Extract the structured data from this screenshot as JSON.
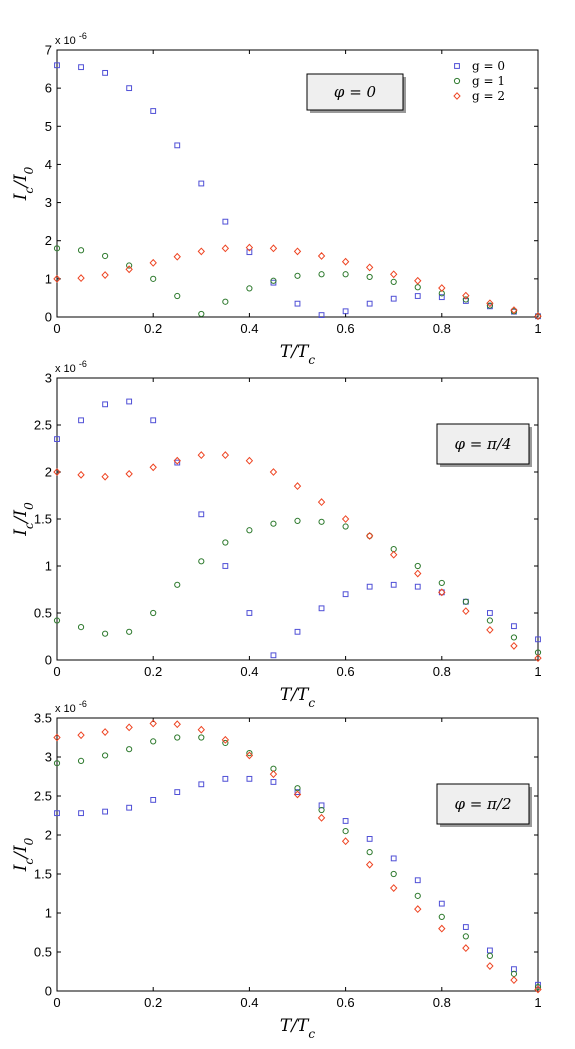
{
  "figure": {
    "xlabel": "T/T_c",
    "ylabel": "I_c/I_0",
    "exponent": "x 10",
    "exponent_power": "-6"
  },
  "colors": {
    "g0": "#4f4fd6",
    "g1": "#2e7a2e",
    "g2": "#ee4422"
  },
  "legend": {
    "placement": "top-right of top panel",
    "entries": [
      "g = 0",
      "g = 1",
      "g = 2"
    ]
  },
  "chart_data": [
    {
      "type": "scatter",
      "annotation": "φ = 0",
      "xlabel": "T/T_c",
      "ylabel": "I_c/I_0",
      "xlim": [
        0,
        1
      ],
      "ylim": [
        0,
        7
      ],
      "xticks": [
        "0",
        "0.2",
        "0.4",
        "0.6",
        "0.8",
        "1"
      ],
      "yticks": [
        "0",
        "1",
        "2",
        "3",
        "4",
        "5",
        "6",
        "7"
      ],
      "ymultiplier": "x 10^-6",
      "series": [
        {
          "name": "g = 0",
          "marker": "square",
          "points": [
            [
              0,
              6.6
            ],
            [
              0.05,
              6.55
            ],
            [
              0.1,
              6.4
            ],
            [
              0.15,
              6.0
            ],
            [
              0.2,
              5.4
            ],
            [
              0.25,
              4.5
            ],
            [
              0.3,
              3.5
            ],
            [
              0.35,
              2.5
            ],
            [
              0.4,
              1.7
            ],
            [
              0.45,
              0.9
            ],
            [
              0.5,
              0.35
            ],
            [
              0.55,
              0.05
            ],
            [
              0.6,
              0.15
            ],
            [
              0.65,
              0.35
            ],
            [
              0.7,
              0.48
            ],
            [
              0.75,
              0.55
            ],
            [
              0.8,
              0.52
            ],
            [
              0.85,
              0.42
            ],
            [
              0.9,
              0.28
            ],
            [
              0.95,
              0.14
            ],
            [
              1,
              0.02
            ]
          ]
        },
        {
          "name": "g = 1",
          "marker": "circle",
          "points": [
            [
              0,
              1.8
            ],
            [
              0.05,
              1.75
            ],
            [
              0.1,
              1.6
            ],
            [
              0.15,
              1.35
            ],
            [
              0.2,
              1.0
            ],
            [
              0.25,
              0.55
            ],
            [
              0.3,
              0.08
            ],
            [
              0.35,
              0.4
            ],
            [
              0.4,
              0.75
            ],
            [
              0.45,
              0.95
            ],
            [
              0.5,
              1.08
            ],
            [
              0.55,
              1.12
            ],
            [
              0.6,
              1.12
            ],
            [
              0.65,
              1.05
            ],
            [
              0.7,
              0.92
            ],
            [
              0.75,
              0.78
            ],
            [
              0.8,
              0.62
            ],
            [
              0.85,
              0.46
            ],
            [
              0.9,
              0.3
            ],
            [
              0.95,
              0.15
            ],
            [
              1,
              0.02
            ]
          ]
        },
        {
          "name": "g = 2",
          "marker": "diamond",
          "points": [
            [
              0,
              1.0
            ],
            [
              0.05,
              1.02
            ],
            [
              0.1,
              1.1
            ],
            [
              0.15,
              1.25
            ],
            [
              0.2,
              1.42
            ],
            [
              0.25,
              1.58
            ],
            [
              0.3,
              1.72
            ],
            [
              0.35,
              1.8
            ],
            [
              0.4,
              1.82
            ],
            [
              0.45,
              1.8
            ],
            [
              0.5,
              1.72
            ],
            [
              0.55,
              1.6
            ],
            [
              0.6,
              1.45
            ],
            [
              0.65,
              1.3
            ],
            [
              0.7,
              1.12
            ],
            [
              0.75,
              0.95
            ],
            [
              0.8,
              0.76
            ],
            [
              0.85,
              0.56
            ],
            [
              0.9,
              0.36
            ],
            [
              0.95,
              0.18
            ],
            [
              1,
              0.02
            ]
          ]
        }
      ]
    },
    {
      "type": "scatter",
      "annotation": "φ = π/4",
      "xlabel": "T/T_c",
      "ylabel": "I_c/I_0",
      "xlim": [
        0,
        1
      ],
      "ylim": [
        0,
        3
      ],
      "xticks": [
        "0",
        "0.2",
        "0.4",
        "0.6",
        "0.8",
        "1"
      ],
      "yticks": [
        "0",
        "0.5",
        "1",
        "1.5",
        "2",
        "2.5",
        "3"
      ],
      "ymultiplier": "x 10^-6",
      "series": [
        {
          "name": "g = 0",
          "marker": "square",
          "points": [
            [
              0,
              2.35
            ],
            [
              0.05,
              2.55
            ],
            [
              0.1,
              2.72
            ],
            [
              0.15,
              2.75
            ],
            [
              0.2,
              2.55
            ],
            [
              0.25,
              2.1
            ],
            [
              0.3,
              1.55
            ],
            [
              0.35,
              1.0
            ],
            [
              0.4,
              0.5
            ],
            [
              0.45,
              0.05
            ],
            [
              0.5,
              0.3
            ],
            [
              0.55,
              0.55
            ],
            [
              0.6,
              0.7
            ],
            [
              0.65,
              0.78
            ],
            [
              0.7,
              0.8
            ],
            [
              0.75,
              0.78
            ],
            [
              0.8,
              0.72
            ],
            [
              0.85,
              0.62
            ],
            [
              0.9,
              0.5
            ],
            [
              0.95,
              0.36
            ],
            [
              1,
              0.22
            ]
          ]
        },
        {
          "name": "g = 1",
          "marker": "circle",
          "points": [
            [
              0,
              0.42
            ],
            [
              0.05,
              0.35
            ],
            [
              0.1,
              0.28
            ],
            [
              0.15,
              0.3
            ],
            [
              0.2,
              0.5
            ],
            [
              0.25,
              0.8
            ],
            [
              0.3,
              1.05
            ],
            [
              0.35,
              1.25
            ],
            [
              0.4,
              1.38
            ],
            [
              0.45,
              1.45
            ],
            [
              0.5,
              1.48
            ],
            [
              0.55,
              1.47
            ],
            [
              0.6,
              1.42
            ],
            [
              0.65,
              1.32
            ],
            [
              0.7,
              1.18
            ],
            [
              0.75,
              1.0
            ],
            [
              0.8,
              0.82
            ],
            [
              0.85,
              0.62
            ],
            [
              0.9,
              0.42
            ],
            [
              0.95,
              0.24
            ],
            [
              1,
              0.08
            ]
          ]
        },
        {
          "name": "g = 2",
          "marker": "diamond",
          "points": [
            [
              0,
              2.0
            ],
            [
              0.05,
              1.97
            ],
            [
              0.1,
              1.95
            ],
            [
              0.15,
              1.98
            ],
            [
              0.2,
              2.05
            ],
            [
              0.25,
              2.12
            ],
            [
              0.3,
              2.18
            ],
            [
              0.35,
              2.18
            ],
            [
              0.4,
              2.12
            ],
            [
              0.45,
              2.0
            ],
            [
              0.5,
              1.85
            ],
            [
              0.55,
              1.68
            ],
            [
              0.6,
              1.5
            ],
            [
              0.65,
              1.32
            ],
            [
              0.7,
              1.12
            ],
            [
              0.75,
              0.92
            ],
            [
              0.8,
              0.72
            ],
            [
              0.85,
              0.52
            ],
            [
              0.9,
              0.32
            ],
            [
              0.95,
              0.15
            ],
            [
              1,
              0.02
            ]
          ]
        }
      ]
    },
    {
      "type": "scatter",
      "annotation": "φ = π/2",
      "xlabel": "T/T_c",
      "ylabel": "I_c/I_0",
      "xlim": [
        0,
        1
      ],
      "ylim": [
        0,
        3.5
      ],
      "xticks": [
        "0",
        "0.2",
        "0.4",
        "0.6",
        "0.8",
        "1"
      ],
      "yticks": [
        "0",
        "0.5",
        "1",
        "1.5",
        "2",
        "2.5",
        "3",
        "3.5"
      ],
      "ymultiplier": "x 10^-6",
      "series": [
        {
          "name": "g = 0",
          "marker": "square",
          "points": [
            [
              0,
              2.28
            ],
            [
              0.05,
              2.28
            ],
            [
              0.1,
              2.3
            ],
            [
              0.15,
              2.35
            ],
            [
              0.2,
              2.45
            ],
            [
              0.25,
              2.55
            ],
            [
              0.3,
              2.65
            ],
            [
              0.35,
              2.72
            ],
            [
              0.4,
              2.72
            ],
            [
              0.45,
              2.68
            ],
            [
              0.5,
              2.55
            ],
            [
              0.55,
              2.38
            ],
            [
              0.6,
              2.18
            ],
            [
              0.65,
              1.95
            ],
            [
              0.7,
              1.7
            ],
            [
              0.75,
              1.42
            ],
            [
              0.8,
              1.12
            ],
            [
              0.85,
              0.82
            ],
            [
              0.9,
              0.52
            ],
            [
              0.95,
              0.28
            ],
            [
              1,
              0.08
            ]
          ]
        },
        {
          "name": "g = 1",
          "marker": "circle",
          "points": [
            [
              0,
              2.92
            ],
            [
              0.05,
              2.95
            ],
            [
              0.1,
              3.02
            ],
            [
              0.15,
              3.1
            ],
            [
              0.2,
              3.2
            ],
            [
              0.25,
              3.25
            ],
            [
              0.3,
              3.25
            ],
            [
              0.35,
              3.18
            ],
            [
              0.4,
              3.05
            ],
            [
              0.45,
              2.85
            ],
            [
              0.5,
              2.6
            ],
            [
              0.55,
              2.32
            ],
            [
              0.6,
              2.05
            ],
            [
              0.65,
              1.78
            ],
            [
              0.7,
              1.5
            ],
            [
              0.75,
              1.22
            ],
            [
              0.8,
              0.95
            ],
            [
              0.85,
              0.7
            ],
            [
              0.9,
              0.45
            ],
            [
              0.95,
              0.22
            ],
            [
              1,
              0.05
            ]
          ]
        },
        {
          "name": "g = 2",
          "marker": "diamond",
          "points": [
            [
              0,
              3.25
            ],
            [
              0.05,
              3.28
            ],
            [
              0.1,
              3.32
            ],
            [
              0.15,
              3.38
            ],
            [
              0.2,
              3.43
            ],
            [
              0.25,
              3.42
            ],
            [
              0.3,
              3.35
            ],
            [
              0.35,
              3.22
            ],
            [
              0.4,
              3.02
            ],
            [
              0.45,
              2.78
            ],
            [
              0.5,
              2.52
            ],
            [
              0.55,
              2.22
            ],
            [
              0.6,
              1.92
            ],
            [
              0.65,
              1.62
            ],
            [
              0.7,
              1.32
            ],
            [
              0.75,
              1.05
            ],
            [
              0.8,
              0.8
            ],
            [
              0.85,
              0.55
            ],
            [
              0.9,
              0.32
            ],
            [
              0.95,
              0.14
            ],
            [
              1,
              0.02
            ]
          ]
        }
      ]
    }
  ]
}
